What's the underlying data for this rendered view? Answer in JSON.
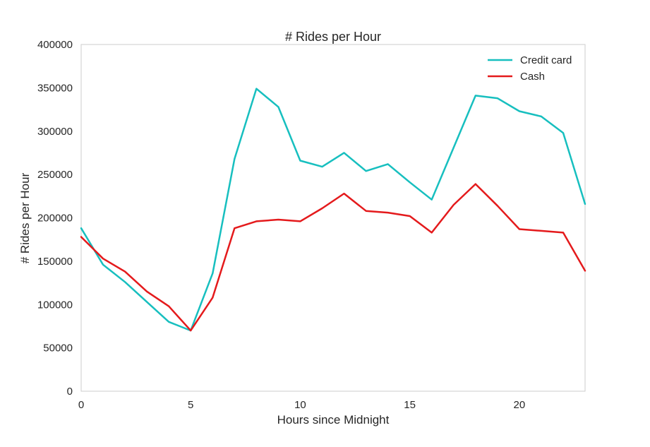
{
  "chart_data": {
    "type": "line",
    "title": "# Rides per Hour",
    "xlabel": "Hours since Midnight",
    "ylabel": "# Rides per Hour",
    "xlim": [
      0,
      23
    ],
    "ylim": [
      0,
      400000
    ],
    "x_ticks": [
      0,
      5,
      10,
      15,
      20
    ],
    "y_ticks": [
      0,
      50000,
      100000,
      150000,
      200000,
      250000,
      300000,
      350000,
      400000
    ],
    "x_tick_labels": [
      "0",
      "5",
      "10",
      "15",
      "20"
    ],
    "y_tick_labels": [
      "0",
      "50000",
      "100000",
      "150000",
      "200000",
      "250000",
      "300000",
      "350000",
      "400000"
    ],
    "grid": false,
    "legend_position": "top-right",
    "x": [
      0,
      1,
      2,
      3,
      4,
      5,
      6,
      7,
      8,
      9,
      10,
      11,
      12,
      13,
      14,
      15,
      16,
      17,
      18,
      19,
      20,
      21,
      22,
      23
    ],
    "series": [
      {
        "name": "Credit card",
        "color": "#17bfbf",
        "values": [
          188000,
          146000,
          126000,
          103000,
          80000,
          70000,
          136000,
          268000,
          349000,
          328000,
          266000,
          259000,
          275000,
          254000,
          262000,
          241000,
          221000,
          281000,
          341000,
          338000,
          323000,
          317000,
          298000,
          216000
        ]
      },
      {
        "name": "Cash",
        "color": "#e41a1c",
        "values": [
          178000,
          153000,
          138000,
          115000,
          98000,
          70000,
          108000,
          188000,
          196000,
          198000,
          196000,
          211000,
          228000,
          208000,
          206000,
          202000,
          183000,
          215000,
          239000,
          214000,
          187000,
          185000,
          183000,
          139000
        ]
      }
    ]
  }
}
